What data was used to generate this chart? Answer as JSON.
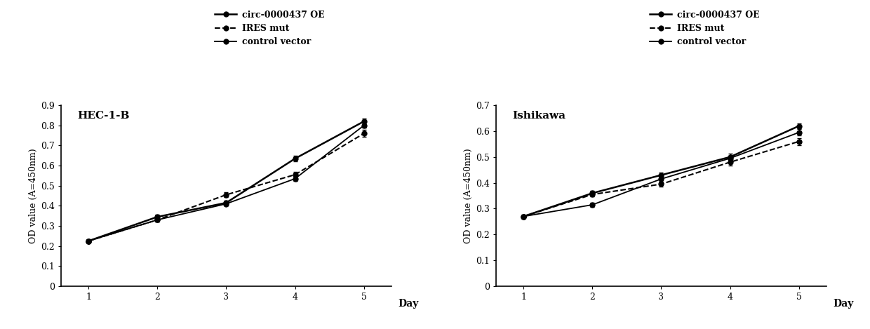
{
  "days": [
    1,
    2,
    3,
    4,
    5
  ],
  "hec1b": {
    "title": "HEC-1-B",
    "ylabel": "OD value (A=450nm)",
    "ylim": [
      0,
      0.9
    ],
    "yticks": [
      0,
      0.1,
      0.2,
      0.3,
      0.4,
      0.5,
      0.6,
      0.7,
      0.8,
      0.9
    ],
    "ytick_labels": [
      "0",
      "0.1",
      "0.2",
      "0.3",
      "0.4",
      "0.5",
      "0.6",
      "0.7",
      "0.8",
      "0.9"
    ],
    "circ_oe": [
      0.225,
      0.345,
      0.415,
      0.635,
      0.82
    ],
    "circ_oe_err": [
      0.008,
      0.01,
      0.012,
      0.015,
      0.015
    ],
    "ires_mut": [
      0.225,
      0.33,
      0.455,
      0.555,
      0.76
    ],
    "ires_mut_err": [
      0.006,
      0.01,
      0.012,
      0.013,
      0.018
    ],
    "ctrl_vec": [
      0.225,
      0.33,
      0.41,
      0.535,
      0.8
    ],
    "ctrl_vec_err": [
      0.006,
      0.01,
      0.01,
      0.01,
      0.012
    ]
  },
  "ishikawa": {
    "title": "Ishikawa",
    "ylabel": "OD value (A=450nm)",
    "ylim": [
      0,
      0.7
    ],
    "yticks": [
      0,
      0.1,
      0.2,
      0.3,
      0.4,
      0.5,
      0.6,
      0.7
    ],
    "ytick_labels": [
      "0",
      "0.1",
      "0.2",
      "0.3",
      "0.4",
      "0.5",
      "0.6",
      "0.7"
    ],
    "circ_oe": [
      0.27,
      0.36,
      0.43,
      0.5,
      0.62
    ],
    "circ_oe_err": [
      0.006,
      0.008,
      0.01,
      0.012,
      0.01
    ],
    "ires_mut": [
      0.27,
      0.355,
      0.395,
      0.48,
      0.56
    ],
    "ires_mut_err": [
      0.005,
      0.008,
      0.01,
      0.012,
      0.014
    ],
    "ctrl_vec": [
      0.27,
      0.315,
      0.415,
      0.495,
      0.595
    ],
    "ctrl_vec_err": [
      0.005,
      0.008,
      0.01,
      0.01,
      0.012
    ]
  },
  "legend_labels": [
    "circ-0000437 OE",
    "IRES mut",
    "control vector"
  ],
  "bg_color": "#ffffff"
}
